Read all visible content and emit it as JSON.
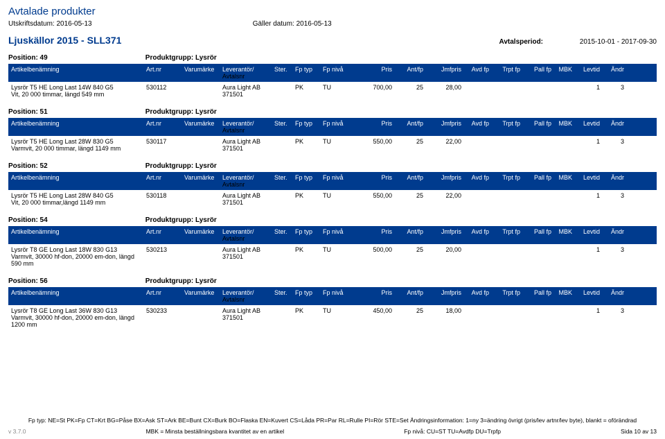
{
  "header": {
    "title": "Avtalade produkter",
    "print_date_label": "Utskriftsdatum:",
    "print_date": "2016-05-13",
    "valid_date_label": "Gäller datum:",
    "valid_date": "2016-05-13"
  },
  "category": {
    "title": "Ljuskällor 2015 - SLL371",
    "period_label": "Avtalsperiod:",
    "period": "2015-10-01 - 2017-09-30"
  },
  "columns": {
    "name": "Artikelbenämning",
    "artnr": "Art.nr",
    "brand": "Varumärke",
    "lev": "Leverantör/",
    "lev_sub": "Avtalsnr",
    "ster": "Ster.",
    "fptyp": "Fp typ",
    "fpniva": "Fp nivå",
    "pris": "Pris",
    "antfp": "Ant/fp",
    "jmf": "Jmfpris",
    "avd": "Avd fp",
    "trpt": "Trpt fp",
    "pall": "Pall fp",
    "mbk": "MBK",
    "levtid": "Levtid",
    "andr": "Ändr"
  },
  "positions": [
    {
      "pos_label": "Position: 49",
      "grp_label": "Produktgrupp: Lysrör",
      "row": {
        "name": "Lysrör T5 HE Long Last 14W 840 G5",
        "name_sub": "Vit, 20 000 timmar, längd 549 mm",
        "artnr": "530112",
        "brand": "",
        "lev": "Aura Light AB",
        "lev_sub": "371501",
        "fptyp": "PK",
        "fpniva": "TU",
        "pris": "700,00",
        "antfp": "25",
        "jmf": "28,00",
        "levtid": "1",
        "andr": "3"
      }
    },
    {
      "pos_label": "Position: 51",
      "grp_label": "Produktgrupp: Lysrör",
      "row": {
        "name": "Lysrör T5 HE Long Last 28W 830 G5",
        "name_sub": "Varmvit, 20 000 timmar, längd 1149 mm",
        "artnr": "530117",
        "brand": "",
        "lev": "Aura Light AB",
        "lev_sub": "371501",
        "fptyp": "PK",
        "fpniva": "TU",
        "pris": "550,00",
        "antfp": "25",
        "jmf": "22,00",
        "levtid": "1",
        "andr": "3"
      }
    },
    {
      "pos_label": "Position: 52",
      "grp_label": "Produktgrupp: Lysrör",
      "row": {
        "name": "Lysrör T5 HE Long Last 28W 840 G5",
        "name_sub": "Vit, 20 000 timmar,längd 1149 mm",
        "artnr": "530118",
        "brand": "",
        "lev": "Aura Light AB",
        "lev_sub": "371501",
        "fptyp": "PK",
        "fpniva": "TU",
        "pris": "550,00",
        "antfp": "25",
        "jmf": "22,00",
        "levtid": "1",
        "andr": "3"
      }
    },
    {
      "pos_label": "Position: 54",
      "grp_label": "Produktgrupp: Lysrör",
      "row": {
        "name": "Lysrör T8 GE Long Last 18W 830 G13",
        "name_sub": "Varmvit, 30000 hf-don, 20000 em-don, längd 590 mm",
        "artnr": "530213",
        "brand": "",
        "lev": "Aura Light AB",
        "lev_sub": "371501",
        "fptyp": "PK",
        "fpniva": "TU",
        "pris": "500,00",
        "antfp": "25",
        "jmf": "20,00",
        "levtid": "1",
        "andr": "3"
      }
    },
    {
      "pos_label": "Position: 56",
      "grp_label": "Produktgrupp: Lysrör",
      "row": {
        "name": "Lysrör T8 GE Long Last 36W 830 G13",
        "name_sub": "Varmvit, 30000 hf-don, 20000 em-don, längd 1200 mm",
        "artnr": "530233",
        "brand": "",
        "lev": "Aura Light AB",
        "lev_sub": "371501",
        "fptyp": "PK",
        "fpniva": "TU",
        "pris": "450,00",
        "antfp": "25",
        "jmf": "18,00",
        "levtid": "1",
        "andr": "3"
      }
    }
  ],
  "footer": {
    "legend1": "Fp typ: NE=St PK=Fp CT=Krt BG=Påse BX=Ask ST=Ark BE=Bunt CX=Burk BO=Flaska EN=Kuvert CS=Låda PR=Par RL=Rulle PI=Rör STE=Set Ändringsinformation: 1=ny 3=ändring övrigt (pris/lev artnr/lev byte), blankt = oförändrad",
    "version": "v 3.7.0",
    "mbk": "MBK = Minsta beställningsbara kvantitet av en artikel",
    "fpniva": "Fp nivå: CU=ST TU=Avdfp DU=Trpfp",
    "page": "Sida 10 av 13"
  }
}
